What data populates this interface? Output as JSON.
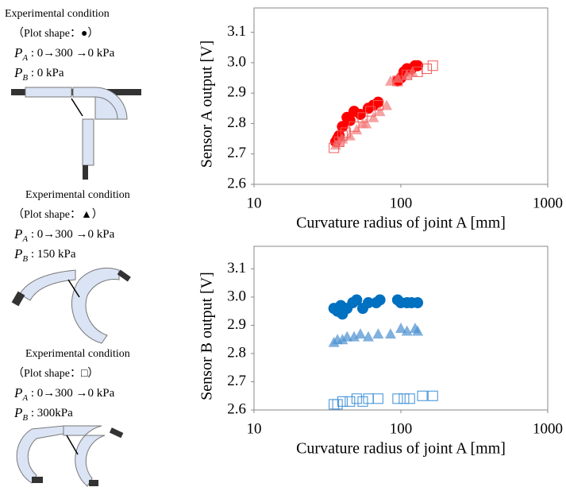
{
  "conditions": [
    {
      "title": "Experimental condition",
      "shape": "（Plot shape：●）",
      "pa": {
        "symbol": "P",
        "subscript": "A",
        "text": " : 0→300 →0 kPa"
      },
      "pb": {
        "symbol": "P",
        "subscript": "B",
        "text": " : 0 kPa"
      }
    },
    {
      "title": "Experimental condition",
      "shape": "（Plot shape：▲）",
      "pa": {
        "symbol": "P",
        "subscript": "A",
        "text": " : 0→300 →0 kPa"
      },
      "pb": {
        "symbol": "P",
        "subscript": "B",
        "text": " : 150 kPa"
      }
    },
    {
      "title": "Experimental condition",
      "shape": "（Plot shape：□）",
      "pa": {
        "symbol": "P",
        "subscript": "A",
        "text": " : 0→300 →0 kPa"
      },
      "pb": {
        "symbol": "P",
        "subscript": "B",
        "text": " : 300kPa"
      }
    }
  ],
  "chart_data": [
    {
      "type": "scatter",
      "x_label": "Curvature radius of joint A [mm]",
      "y_label": "Sensor A output [V]",
      "xscale": "log",
      "xlim": [
        10,
        1000
      ],
      "xticks": [
        10,
        100,
        1000
      ],
      "ylim": [
        2.6,
        3.18
      ],
      "yticks": [
        2.6,
        2.7,
        2.8,
        2.9,
        {
          "value": 3,
          "label": "3.0"
        },
        3.1
      ],
      "series": [
        {
          "marker": "circle",
          "color": "#ff0000",
          "x": [
            36,
            37,
            38,
            40,
            43,
            45,
            48,
            53,
            60,
            65,
            70,
            95,
            100,
            105,
            110,
            118,
            125,
            130
          ],
          "y": [
            2.74,
            2.75,
            2.76,
            2.79,
            2.82,
            2.81,
            2.84,
            2.83,
            2.85,
            2.86,
            2.87,
            2.94,
            2.95,
            2.97,
            2.98,
            2.98,
            2.99,
            2.99
          ]
        },
        {
          "marker": "triangle",
          "color": "#f47a7a",
          "x": [
            36,
            38,
            40,
            45,
            50,
            55,
            58,
            65,
            72,
            80,
            85,
            95,
            110,
            120
          ],
          "y": [
            2.73,
            2.74,
            2.75,
            2.76,
            2.78,
            2.8,
            2.8,
            2.82,
            2.84,
            2.86,
            2.94,
            2.95,
            2.96,
            2.97
          ]
        },
        {
          "marker": "square",
          "color": "#f05a5a",
          "x": [
            35,
            38,
            40,
            42,
            48,
            55,
            62,
            70,
            95,
            110,
            130,
            150,
            165
          ],
          "y": [
            2.72,
            2.74,
            2.76,
            2.77,
            2.79,
            2.82,
            2.84,
            2.86,
            2.94,
            2.96,
            2.97,
            2.98,
            2.99
          ]
        }
      ]
    },
    {
      "type": "scatter",
      "x_label": "Curvature radius of joint A [mm]",
      "y_label": "Sensor B output [V]",
      "xscale": "log",
      "xlim": [
        10,
        1000
      ],
      "xticks": [
        10,
        100,
        1000
      ],
      "ylim": [
        2.6,
        3.18
      ],
      "yticks": [
        2.6,
        2.7,
        2.8,
        2.9,
        {
          "value": 3,
          "label": "3.0"
        },
        3.1
      ],
      "series": [
        {
          "marker": "circle",
          "color": "#0070c0",
          "x": [
            35,
            37,
            39,
            40,
            43,
            47,
            50,
            55,
            60,
            68,
            72,
            95,
            100,
            110,
            118,
            130
          ],
          "y": [
            2.96,
            2.95,
            2.97,
            2.94,
            2.96,
            2.98,
            2.99,
            2.96,
            2.98,
            2.98,
            2.99,
            2.99,
            2.98,
            2.98,
            2.98,
            2.98
          ]
        },
        {
          "marker": "triangle",
          "color": "#4a90d0",
          "x": [
            35,
            37,
            40,
            43,
            48,
            53,
            60,
            70,
            85,
            100,
            110,
            125,
            130
          ],
          "y": [
            2.84,
            2.85,
            2.85,
            2.86,
            2.86,
            2.87,
            2.86,
            2.87,
            2.87,
            2.89,
            2.88,
            2.89,
            2.88
          ]
        },
        {
          "marker": "square",
          "color": "#3a8ed6",
          "x": [
            35,
            37,
            40,
            45,
            50,
            55,
            60,
            70,
            95,
            105,
            115,
            140,
            165
          ],
          "y": [
            2.62,
            2.62,
            2.63,
            2.63,
            2.64,
            2.63,
            2.64,
            2.64,
            2.64,
            2.64,
            2.64,
            2.65,
            2.65
          ]
        }
      ]
    }
  ]
}
